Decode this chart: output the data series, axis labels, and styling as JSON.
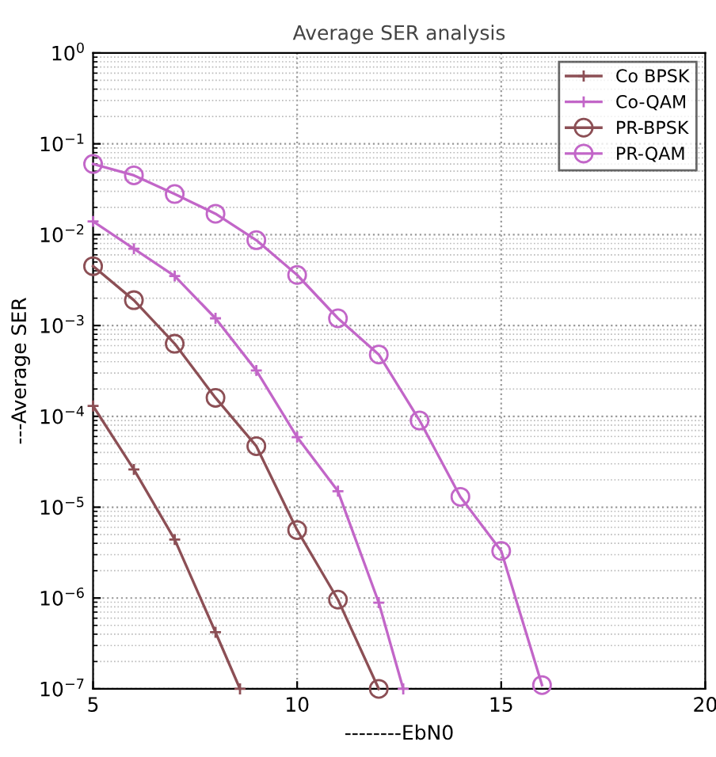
{
  "chart_data": {
    "type": "line",
    "title": "Average SER analysis",
    "xlabel": "--------EbN0",
    "ylabel": "---Average SER",
    "log": "y",
    "grid": true,
    "legend": "top right",
    "xlim": [
      5,
      20
    ],
    "xticks": [
      5,
      10,
      15,
      20
    ],
    "ylim": [
      1e-07,
      1
    ],
    "yticks": [
      {
        "value": 1,
        "label": "10$^{0}$"
      },
      {
        "value": 0.1,
        "label": "10$^{−1}$"
      },
      {
        "value": 0.01,
        "label": "10$^{−2}$"
      },
      {
        "value": 0.001,
        "label": "10$^{−3}$"
      },
      {
        "value": 0.0001,
        "label": "10$^{−4}$"
      },
      {
        "value": 1e-05,
        "label": "10$^{−5}$"
      },
      {
        "value": 1e-06,
        "label": "10$^{−6}$"
      },
      {
        "value": 1e-07,
        "label": "10$^{−7}$"
      }
    ],
    "series": [
      {
        "name": "Co BPSK",
        "color": "#8c4f55",
        "marker": "cross",
        "x": [
          5,
          6,
          7,
          8,
          8.6
        ],
        "values": [
          0.00013,
          2.6e-05,
          4.4e-06,
          4.2e-07,
          1e-07
        ]
      },
      {
        "name": "Co-QAM",
        "color": "#c266c8",
        "marker": "cross",
        "x": [
          5,
          6,
          7,
          8,
          9,
          10,
          11,
          12,
          12.6
        ],
        "values": [
          0.014,
          0.007,
          0.0035,
          0.0012,
          0.00032,
          5.9e-05,
          1.5e-05,
          8.9e-07,
          1e-07
        ]
      },
      {
        "name": "PR-BPSK",
        "color": "#8c4f55",
        "marker": "circle",
        "x": [
          5,
          6,
          7,
          8,
          9,
          10,
          11,
          12
        ],
        "values": [
          0.0045,
          0.0019,
          0.00063,
          0.00016,
          4.7e-05,
          5.6e-06,
          9.6e-07,
          1e-07
        ]
      },
      {
        "name": "PR-QAM",
        "color": "#c266c8",
        "marker": "circle",
        "x": [
          5,
          6,
          7,
          8,
          9,
          10,
          11,
          12,
          13,
          14,
          15,
          16
        ],
        "values": [
          0.06,
          0.045,
          0.028,
          0.017,
          0.0087,
          0.0036,
          0.0012,
          0.00048,
          9e-05,
          1.3e-05,
          3.3e-06,
          1.1e-07
        ]
      }
    ]
  }
}
